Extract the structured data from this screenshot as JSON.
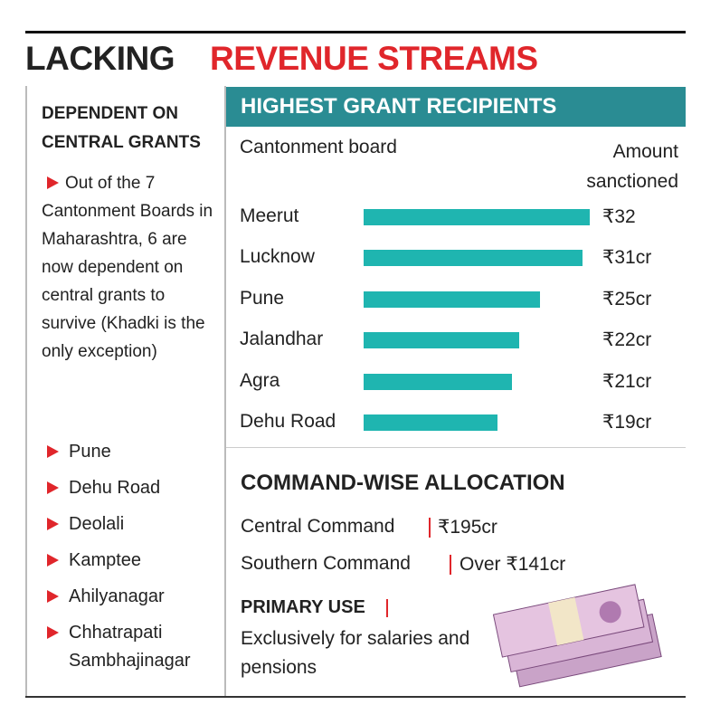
{
  "title": {
    "part1": "LACKING",
    "part2": "REVENUE STREAMS"
  },
  "sidebar": {
    "heading": "DEPENDENT ON CENTRAL GRANTS",
    "note": "Out of the 7 Cantonment Boards in Maharashtra, 6 are now dependent on central grants to survive (Khadki is the only exception)",
    "boards": [
      "Pune",
      "Dehu Road",
      "Deolali",
      "Kamptee",
      "Ahilyanagar",
      "Chhatrapati Sambhajinagar"
    ]
  },
  "chart_data": {
    "type": "bar",
    "orientation": "horizontal",
    "title": "HIGHEST GRANT RECIPIENTS",
    "category_header": "Cantonment board",
    "value_header": "Amount sanctioned",
    "categories": [
      "Meerut",
      "Lucknow",
      "Pune",
      "Jalandhar",
      "Agra",
      "Dehu Road"
    ],
    "values": [
      32,
      31,
      25,
      22,
      21,
      19
    ],
    "value_labels": [
      "₹32",
      "₹31cr",
      "₹25cr",
      "₹22cr",
      "₹21cr",
      "₹19cr"
    ],
    "color": "#1fb5b0"
  },
  "allocation": {
    "heading": "COMMAND-WISE ALLOCATION",
    "rows": [
      {
        "command": "Central Command",
        "amount": "₹195cr"
      },
      {
        "command": "Southern Command",
        "amount": "Over ₹141cr"
      }
    ]
  },
  "primary_use": {
    "heading": "PRIMARY USE",
    "text": "Exclusively for salaries and pensions"
  }
}
